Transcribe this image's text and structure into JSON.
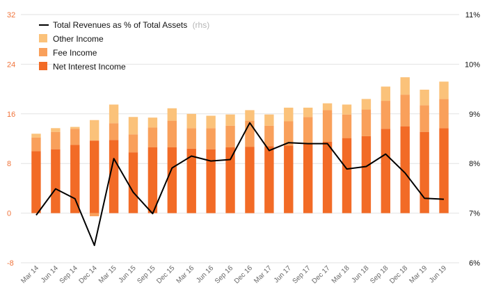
{
  "chart_data": {
    "type": "bar",
    "subtype": "stacked-bar-with-line",
    "categories": [
      "Mar 14",
      "Jun 14",
      "Sep 14",
      "Dec 14",
      "Mar 15",
      "Jun 15",
      "Sep 15",
      "Dec 15",
      "Mar 16",
      "Jun 16",
      "Sep 16",
      "Dec 16",
      "Mar 17",
      "Jun 17",
      "Sep 17",
      "Dec 17",
      "Mar 18",
      "Jun 18",
      "Sep 18",
      "Dec 18",
      "Mar 19",
      "Jun 19"
    ],
    "y_left": {
      "range": [
        -8,
        32
      ],
      "ticks": [
        "32",
        "24",
        "16",
        "8",
        "0",
        "-8"
      ]
    },
    "y_right": {
      "range": [
        6,
        11
      ],
      "ticks": [
        "11%",
        "10%",
        "9%",
        "8%",
        "7%",
        "6%"
      ]
    },
    "grid": "horizontal",
    "legend_position": "top-left",
    "series": [
      {
        "name": "Net Interest Income",
        "type": "bar",
        "axis": "left",
        "color": "#f26b26",
        "values": [
          10.0,
          10.3,
          11.0,
          11.7,
          11.8,
          9.8,
          10.6,
          10.6,
          10.4,
          10.3,
          10.6,
          10.7,
          10.8,
          10.9,
          11.2,
          11.5,
          12.1,
          12.4,
          13.6,
          14.0,
          13.1,
          13.7
        ]
      },
      {
        "name": "Fee Income",
        "type": "bar",
        "axis": "left",
        "color": "#f9a05b",
        "values": [
          2.2,
          2.8,
          2.6,
          -0.5,
          2.7,
          2.9,
          3.2,
          4.3,
          3.3,
          3.4,
          3.5,
          4.2,
          3.3,
          3.9,
          4.3,
          5.1,
          3.8,
          4.3,
          4.5,
          5.1,
          4.3,
          4.7
        ]
      },
      {
        "name": "Other Income",
        "type": "bar",
        "axis": "left",
        "color": "#fbc27a",
        "values": [
          0.6,
          0.6,
          0.3,
          3.3,
          3.0,
          2.8,
          1.6,
          2.0,
          2.3,
          2.0,
          1.8,
          1.7,
          1.8,
          2.2,
          1.5,
          1.1,
          1.6,
          1.7,
          2.3,
          2.8,
          2.5,
          2.8
        ]
      },
      {
        "name": "Total Revenues as % of Total Assets",
        "name_suffix": "(rhs)",
        "type": "line",
        "axis": "right",
        "color": "#000000",
        "values": [
          6.96,
          7.49,
          7.29,
          6.35,
          8.1,
          7.42,
          6.99,
          7.91,
          8.15,
          8.05,
          8.08,
          8.82,
          8.26,
          8.42,
          8.4,
          8.4,
          7.89,
          7.94,
          8.19,
          7.81,
          7.3,
          7.28
        ]
      }
    ],
    "stack_negative": [
      false,
      false,
      true,
      true,
      false,
      false,
      false,
      false,
      false,
      false,
      false,
      false,
      false,
      false,
      false,
      false,
      false,
      false,
      false,
      false,
      false,
      false
    ]
  },
  "legend": {
    "line_label": "Total Revenues as % of Total Assets",
    "line_suffix": "(rhs)",
    "other_label": "Other Income",
    "fee_label": "Fee Income",
    "nii_label": "Net Interest Income"
  },
  "colors": {
    "nii": "#f26b26",
    "fee": "#f9a05b",
    "other": "#fbc27a",
    "line": "#000000",
    "grid": "#e2e2e2",
    "left_ticks": "#f0733a"
  }
}
